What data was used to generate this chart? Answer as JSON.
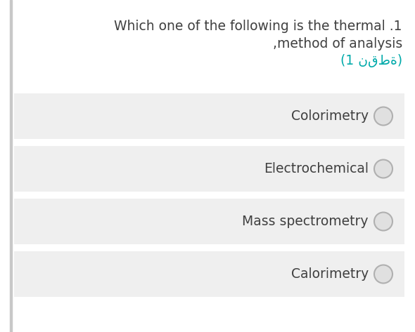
{
  "title_line1": "Which one of the following is the thermal .1",
  "title_line2": ",method of analysis",
  "title_line3": "(1 نقطة)",
  "options": [
    "Colorimetry",
    "Electrochemical",
    "Mass spectrometry",
    "Calorimetry"
  ],
  "bg_color": "#ffffff",
  "option_box_color": "#efefef",
  "title_color": "#404040",
  "arabic_color": "#00aaaa",
  "option_text_color": "#404040",
  "circle_edge_color": "#b0b0b0",
  "circle_face_color": "#e0e0e0",
  "left_bar_color": "#c8c8c8",
  "title_fontsize": 13.5,
  "option_fontsize": 13.5
}
